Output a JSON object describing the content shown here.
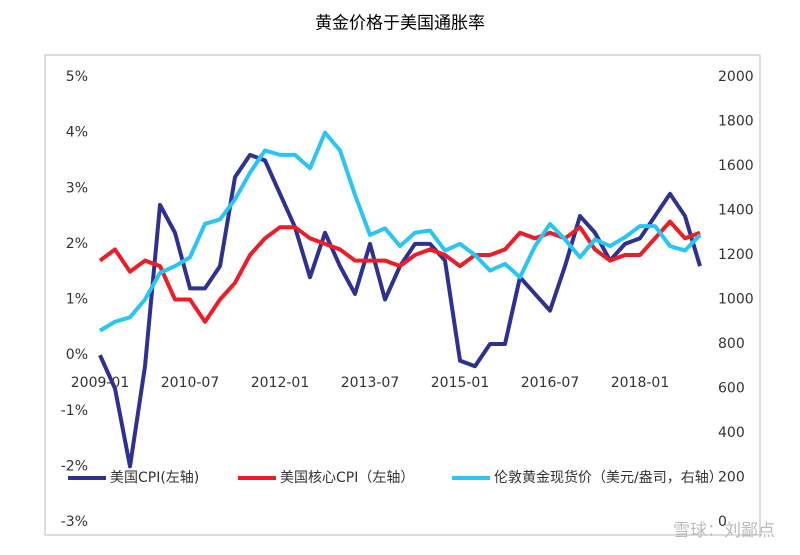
{
  "chart_data": {
    "type": "line",
    "title": "黄金价格于美国通胀率",
    "x": [
      "2009-01",
      "2009-04",
      "2009-07",
      "2009-10",
      "2010-01",
      "2010-04",
      "2010-07",
      "2010-10",
      "2011-01",
      "2011-04",
      "2011-07",
      "2011-10",
      "2012-01",
      "2012-04",
      "2012-07",
      "2012-10",
      "2013-01",
      "2013-04",
      "2013-07",
      "2013-10",
      "2014-01",
      "2014-04",
      "2014-07",
      "2014-10",
      "2015-01",
      "2015-04",
      "2015-07",
      "2015-10",
      "2016-01",
      "2016-04",
      "2016-07",
      "2016-10",
      "2017-01",
      "2017-04",
      "2017-07",
      "2017-10",
      "2018-01",
      "2018-04",
      "2018-07",
      "2018-10",
      "2019-01"
    ],
    "xticks": [
      "2009-01",
      "2010-07",
      "2012-01",
      "2013-07",
      "2015-01",
      "2016-07",
      "2018-01"
    ],
    "series": [
      {
        "name": "美国CPI(左轴)",
        "color": "#2e3192",
        "values": [
          0.0,
          -0.6,
          -2.0,
          -0.2,
          2.7,
          2.2,
          1.2,
          1.2,
          1.6,
          3.2,
          3.6,
          3.5,
          2.9,
          2.3,
          1.4,
          2.2,
          1.6,
          1.1,
          2.0,
          1.0,
          1.6,
          2.0,
          2.0,
          1.7,
          -0.1,
          -0.2,
          0.2,
          0.2,
          1.4,
          1.1,
          0.8,
          1.6,
          2.5,
          2.2,
          1.7,
          2.0,
          2.1,
          2.5,
          2.9,
          2.5,
          1.6
        ]
      },
      {
        "name": "美国核心CPI（左轴）",
        "color": "#ee1c25",
        "values": [
          1.7,
          1.9,
          1.5,
          1.7,
          1.6,
          1.0,
          1.0,
          0.6,
          1.0,
          1.3,
          1.8,
          2.1,
          2.3,
          2.3,
          2.1,
          2.0,
          1.9,
          1.7,
          1.7,
          1.7,
          1.6,
          1.8,
          1.9,
          1.8,
          1.6,
          1.8,
          1.8,
          1.9,
          2.2,
          2.1,
          2.2,
          2.1,
          2.3,
          1.9,
          1.7,
          1.8,
          1.8,
          2.1,
          2.4,
          2.1,
          2.2
        ]
      },
      {
        "name": "伦敦黄金现货价（美元/盎司，右轴）",
        "color": "#29c5f6",
        "axis": "y2",
        "values": [
          860,
          900,
          920,
          1000,
          1120,
          1150,
          1190,
          1340,
          1360,
          1450,
          1570,
          1670,
          1650,
          1650,
          1590,
          1750,
          1670,
          1470,
          1290,
          1320,
          1240,
          1300,
          1310,
          1220,
          1250,
          1200,
          1130,
          1160,
          1100,
          1240,
          1340,
          1270,
          1190,
          1270,
          1240,
          1280,
          1330,
          1330,
          1240,
          1220,
          1290
        ]
      }
    ],
    "ylim": [
      -3,
      5
    ],
    "yticks": [
      {
        "value": 5,
        "label": "5%"
      },
      {
        "value": 4,
        "label": "4%"
      },
      {
        "value": 3,
        "label": "3%"
      },
      {
        "value": 2,
        "label": "2%"
      },
      {
        "value": 1,
        "label": "1%"
      },
      {
        "value": 0,
        "label": "0%"
      },
      {
        "value": -1,
        "label": "-1%"
      },
      {
        "value": -2,
        "label": "-2%"
      },
      {
        "value": -3,
        "label": "-3%"
      }
    ],
    "y2lim": [
      0,
      2000
    ],
    "y2ticks": [
      2000,
      1800,
      1600,
      1400,
      1200,
      1000,
      800,
      600,
      400,
      200,
      0
    ],
    "watermark": "雪球：刘鄙点"
  }
}
